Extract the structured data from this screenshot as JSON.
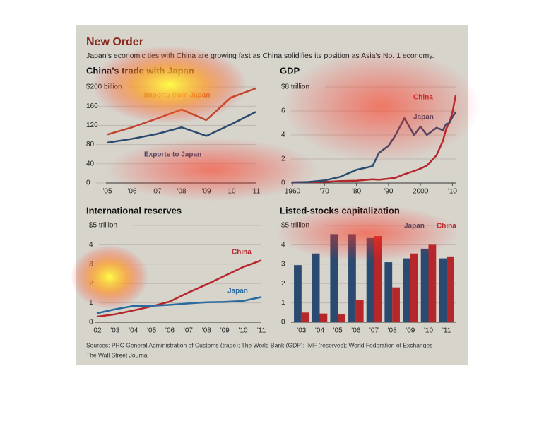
{
  "header": {
    "title": "New Order",
    "subtitle": "Japan’s economic ties with China are growing fast as China solidifies its position as Asia’s No. 1 economy."
  },
  "chart_data": [
    {
      "type": "line",
      "title": "China’s trade with Japan",
      "categories": [
        "'05",
        "'06",
        "'07",
        "'08",
        "'09",
        "'10",
        "'11"
      ],
      "series": [
        {
          "name": "Imports from Japan",
          "color": "#c0452c",
          "values": [
            101,
            116,
            134,
            153,
            131,
            178,
            197
          ]
        },
        {
          "name": "Exports to Japan",
          "color": "#2b4a70",
          "values": [
            84,
            92,
            102,
            116,
            98,
            122,
            148
          ]
        }
      ],
      "ylim": [
        0,
        200
      ],
      "yticks": [
        0,
        40,
        80,
        120,
        160,
        {
          "value": 200,
          "label": "$200 billion"
        }
      ],
      "grid": true
    },
    {
      "type": "line",
      "title": "GDP",
      "x": [
        1960,
        1965,
        1970,
        1975,
        1980,
        1985,
        1987,
        1990,
        1992,
        1995,
        1998,
        2000,
        2002,
        2005,
        2007,
        2008,
        2009,
        2010,
        2011
      ],
      "series": [
        {
          "name": "China",
          "color": "#b5272a",
          "values": [
            0.06,
            0.07,
            0.09,
            0.16,
            0.19,
            0.31,
            0.27,
            0.36,
            0.42,
            0.73,
            1.0,
            1.2,
            1.45,
            2.3,
            3.5,
            4.5,
            5.0,
            5.9,
            7.3
          ]
        },
        {
          "name": "Japan",
          "color": "#2b4a70",
          "values": [
            0.04,
            0.09,
            0.21,
            0.52,
            1.1,
            1.4,
            2.5,
            3.1,
            3.9,
            5.4,
            4.0,
            4.7,
            4.0,
            4.6,
            4.4,
            4.9,
            5.0,
            5.5,
            5.9
          ]
        }
      ],
      "xlim": [
        1960,
        2011
      ],
      "xticks": [
        1960,
        {
          "value": 1970,
          "label": "'70"
        },
        {
          "value": 1980,
          "label": "'80"
        },
        {
          "value": 1990,
          "label": "'90"
        },
        2000,
        {
          "value": 2010,
          "label": "'10"
        }
      ],
      "ylim": [
        0,
        8
      ],
      "yticks": [
        0,
        2,
        4,
        6,
        {
          "value": 8,
          "label": "$8 trillion"
        }
      ],
      "grid": true
    },
    {
      "type": "line",
      "title": "International reserves",
      "categories": [
        "'02",
        "'03",
        "'04",
        "'05",
        "'06",
        "'07",
        "'08",
        "'09",
        "'10",
        "'11"
      ],
      "series": [
        {
          "name": "China",
          "color": "#b5272a",
          "values": [
            0.29,
            0.41,
            0.61,
            0.82,
            1.07,
            1.53,
            1.95,
            2.4,
            2.85,
            3.2
          ]
        },
        {
          "name": "Japan",
          "color": "#2b6a9e",
          "values": [
            0.46,
            0.67,
            0.84,
            0.85,
            0.9,
            0.97,
            1.03,
            1.05,
            1.1,
            1.3
          ]
        }
      ],
      "ylim": [
        0,
        5
      ],
      "yticks": [
        0,
        1,
        2,
        3,
        4,
        {
          "value": 5,
          "label": "$5 trillion"
        }
      ],
      "grid": true
    },
    {
      "type": "bar",
      "title": "Listed-stocks capitalization",
      "categories": [
        "'03",
        "'04",
        "'05",
        "'06",
        "'07",
        "'08",
        "'09",
        "'10",
        "'11"
      ],
      "series": [
        {
          "name": "Japan",
          "color": "#2b4a70",
          "values": [
            2.95,
            3.55,
            4.55,
            4.55,
            4.35,
            3.1,
            3.3,
            3.8,
            3.3
          ]
        },
        {
          "name": "China",
          "color": "#b5272a",
          "values": [
            0.5,
            0.45,
            0.4,
            1.15,
            4.45,
            1.8,
            3.55,
            4.0,
            3.4
          ]
        }
      ],
      "ylim": [
        0,
        5
      ],
      "yticks": [
        0,
        1,
        2,
        3,
        4,
        {
          "value": 5,
          "label": "$5 trillion"
        }
      ],
      "grid": true
    }
  ],
  "footer": {
    "sources": "Sources: PRC General Administration of Customs (trade); The World Bank (GDP); IMF (reserves); World Federation of Exchanges",
    "credit": "The Wall Street Journal"
  }
}
